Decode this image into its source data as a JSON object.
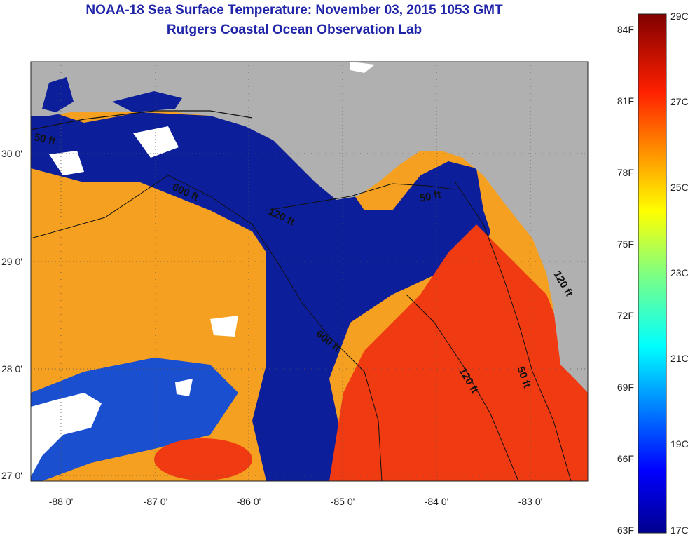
{
  "title": "NOAA-18 Sea Surface Temperature:  November 03, 2015 1053 GMT",
  "subtitle": "Rutgers Coastal Ocean Observation Lab",
  "lat_ticks": [
    "30 0'",
    "29 0'",
    "28 0'",
    "27 0'"
  ],
  "lon_ticks": [
    "-88 0'",
    "-87 0'",
    "-86 0'",
    "-85 0'",
    "-84 0'",
    "-83 0'"
  ],
  "contour_labels": [
    "50 ft",
    "600 ft",
    "120 ft",
    "50 ft",
    "600 ft",
    "120 ft",
    "50 ft",
    "120 ft"
  ],
  "colorbar": {
    "fahrenheit": [
      "84F",
      "81F",
      "78F",
      "75F",
      "72F",
      "69F",
      "66F",
      "63F"
    ],
    "celsius": [
      "29C",
      "27C",
      "25C",
      "23C",
      "21C",
      "19C",
      "17C"
    ]
  },
  "colors": {
    "land": "#b0b0b0",
    "cloud": "#ffffff",
    "cold_water": "#0c1e9a",
    "warm_water": "#f5a020",
    "hot_water": "#f03a12",
    "title": "#1f24a8"
  }
}
